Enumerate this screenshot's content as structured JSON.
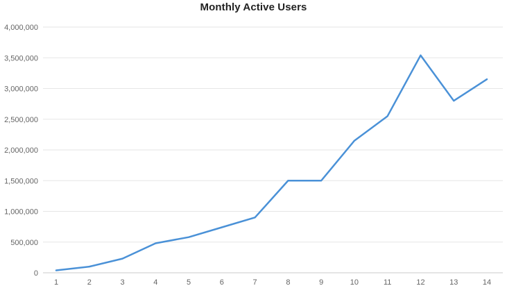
{
  "chart_data": {
    "type": "line",
    "title": "Monthly Active Users",
    "x": [
      1,
      2,
      3,
      4,
      5,
      6,
      7,
      8,
      9,
      10,
      11,
      12,
      13,
      14
    ],
    "values": [
      40000,
      100000,
      230000,
      480000,
      580000,
      740000,
      900000,
      1500000,
      1500000,
      2150000,
      2550000,
      3540000,
      2800000,
      3150000
    ],
    "y_ticks": [
      0,
      500000,
      1000000,
      1500000,
      2000000,
      2500000,
      3000000,
      3500000,
      4000000
    ],
    "ylim": [
      0,
      4000000
    ],
    "xlabel": "",
    "ylabel": "",
    "grid": "horizontal",
    "legend": "none",
    "colors": {
      "line": "#4a91d7",
      "gridline": "#e6e6e6",
      "zero_line": "#c9c9c9",
      "tick_label": "#646464",
      "title": "#222222",
      "background": "#ffffff"
    }
  }
}
